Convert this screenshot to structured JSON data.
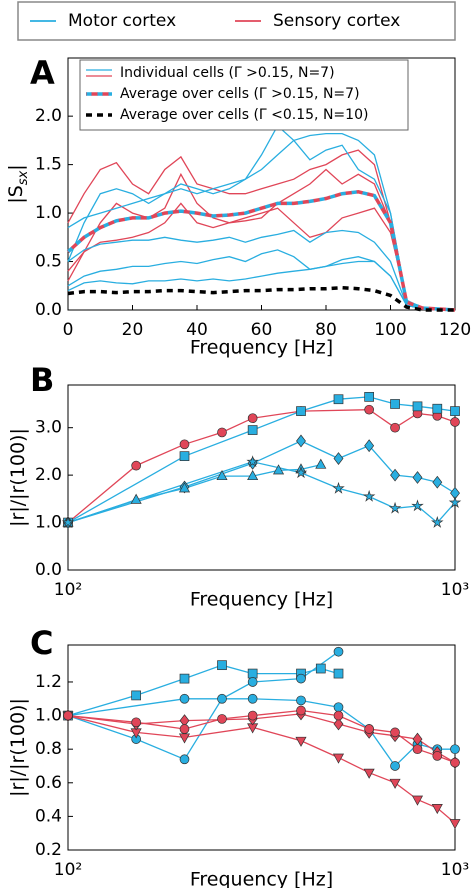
{
  "legend": [
    {
      "label": "Motor cortex",
      "color": "#29aee0"
    },
    {
      "label": "Sensory cortex",
      "color": "#e04658"
    }
  ],
  "chart_data": [
    {
      "type": "line",
      "panel_label": "A",
      "xlabel": "Frequency [Hz]",
      "ylabel": [
        "|S",
        "sx",
        "|"
      ],
      "xscale": "linear",
      "xlim": [
        0,
        120
      ],
      "ylim": [
        0,
        2.6
      ],
      "xticks": [
        0,
        20,
        40,
        60,
        80,
        100,
        120
      ],
      "yticks": [
        {
          "value": 0,
          "label": "0.0"
        },
        {
          "value": 0.5,
          "label": "0.5"
        },
        {
          "value": 1,
          "label": "1.0"
        },
        {
          "value": 1.5,
          "label": "1.5"
        },
        {
          "value": 2,
          "label": "2.0"
        }
      ],
      "legend": [
        {
          "label": "Individual cells (Γ >0.15, N=7)",
          "color": "#29aee0",
          "color2": "#e04658"
        },
        {
          "label": "Average over cells (Γ >0.15, N=7)",
          "color": "#29aee0",
          "color2": "#e04658",
          "dash": true
        },
        {
          "label": "Average over cells (Γ <0.15, N=10)",
          "color": "#000000",
          "dash": true
        }
      ],
      "x": [
        0,
        5,
        10,
        15,
        20,
        25,
        30,
        35,
        40,
        45,
        50,
        55,
        60,
        65,
        70,
        75,
        80,
        85,
        90,
        95,
        100,
        105,
        110,
        115,
        120
      ],
      "series": [
        {
          "color": "#e04658",
          "values": [
            0.9,
            1.2,
            1.45,
            1.52,
            1.3,
            1.2,
            1.45,
            1.58,
            1.3,
            1.25,
            1.2,
            1.2,
            1.25,
            1.3,
            1.35,
            1.45,
            1.5,
            1.6,
            1.65,
            1.5,
            0.9,
            0.1,
            0.02,
            0.01,
            0
          ]
        },
        {
          "color": "#e04658",
          "values": [
            0.3,
            0.6,
            0.9,
            1.1,
            1.0,
            0.95,
            1.05,
            1.4,
            1.1,
            0.95,
            0.9,
            0.92,
            0.95,
            1.1,
            1.2,
            1.3,
            1.45,
            1.3,
            1.4,
            1.3,
            0.9,
            0.1,
            0.02,
            0.01,
            0
          ]
        },
        {
          "color": "#e04658",
          "values": [
            0.4,
            0.6,
            0.7,
            0.72,
            0.75,
            0.8,
            0.9,
            1.1,
            0.9,
            0.85,
            0.9,
            0.95,
            1.0,
            1.05,
            0.9,
            0.75,
            0.8,
            0.95,
            1.0,
            1.05,
            0.8,
            0.1,
            0.02,
            0.01,
            0
          ]
        },
        {
          "color": "#29aee0",
          "values": [
            0.85,
            0.95,
            1.0,
            1.05,
            1.1,
            1.15,
            1.2,
            1.25,
            1.2,
            1.25,
            1.3,
            1.35,
            1.6,
            1.9,
            1.75,
            1.55,
            1.65,
            1.7,
            1.45,
            1.35,
            1.0,
            0.1,
            0.02,
            0.01,
            0
          ]
        },
        {
          "color": "#29aee0",
          "values": [
            0.5,
            0.9,
            1.2,
            1.25,
            1.2,
            1.1,
            1.2,
            1.3,
            1.25,
            1.2,
            1.25,
            1.35,
            1.45,
            1.6,
            1.75,
            1.8,
            1.82,
            1.82,
            1.75,
            1.6,
            1.0,
            0.1,
            0.02,
            0.01,
            0
          ]
        },
        {
          "color": "#29aee0",
          "values": [
            0.5,
            0.62,
            0.68,
            0.7,
            0.72,
            0.72,
            0.75,
            0.72,
            0.7,
            0.72,
            0.75,
            0.7,
            0.75,
            0.78,
            0.82,
            0.7,
            0.8,
            0.82,
            0.8,
            0.7,
            0.5,
            0.05,
            0.01,
            0,
            0
          ]
        },
        {
          "color": "#29aee0",
          "values": [
            0.25,
            0.35,
            0.4,
            0.42,
            0.45,
            0.45,
            0.48,
            0.5,
            0.48,
            0.52,
            0.55,
            0.5,
            0.58,
            0.62,
            0.55,
            0.42,
            0.45,
            0.52,
            0.55,
            0.5,
            0.35,
            0.05,
            0.01,
            0,
            0
          ]
        },
        {
          "color": "#29aee0",
          "values": [
            0.2,
            0.28,
            0.3,
            0.28,
            0.27,
            0.3,
            0.3,
            0.32,
            0.3,
            0.32,
            0.3,
            0.32,
            0.35,
            0.38,
            0.4,
            0.42,
            0.45,
            0.48,
            0.5,
            0.5,
            0.35,
            0.05,
            0.01,
            0,
            0
          ]
        },
        {
          "color": "#29aee0",
          "color2": "#e04658",
          "dash": true,
          "values": [
            0.6,
            0.75,
            0.85,
            0.92,
            0.95,
            0.95,
            1.0,
            1.02,
            1.0,
            0.97,
            0.98,
            1.0,
            1.05,
            1.1,
            1.1,
            1.12,
            1.15,
            1.2,
            1.22,
            1.18,
            0.9,
            0.08,
            0.02,
            0.01,
            0
          ]
        },
        {
          "color": "#000000",
          "dash": true,
          "values": [
            0.17,
            0.19,
            0.19,
            0.18,
            0.19,
            0.19,
            0.2,
            0.2,
            0.19,
            0.18,
            0.19,
            0.2,
            0.2,
            0.21,
            0.21,
            0.22,
            0.22,
            0.23,
            0.22,
            0.2,
            0.15,
            0.03,
            0,
            0,
            0
          ]
        }
      ]
    },
    {
      "type": "line",
      "panel_label": "B",
      "xlabel": "Frequency [Hz]",
      "ylabel": [
        "|r|/|r(100)|"
      ],
      "xscale": "log",
      "xlim": [
        100,
        1000
      ],
      "ylim": [
        0,
        3.9
      ],
      "xticks": [
        {
          "value": 100,
          "label": "10²"
        },
        {
          "value": 1000,
          "label": "10³"
        }
      ],
      "yticks": [
        {
          "value": 0,
          "label": "0.0"
        },
        {
          "value": 1,
          "label": "1.0"
        },
        {
          "value": 2,
          "label": "2.0"
        },
        {
          "value": 3,
          "label": "3.0"
        }
      ],
      "series": [
        {
          "color": "#e04658",
          "marker": "circle",
          "x": [
            100,
            150,
            200,
            250,
            300,
            400,
            600,
            700,
            800,
            900,
            1000
          ],
          "values": [
            1.0,
            2.2,
            2.65,
            2.9,
            3.2,
            3.35,
            3.38,
            3.0,
            3.3,
            3.25,
            3.12
          ]
        },
        {
          "color": "#29aee0",
          "marker": "square",
          "x": [
            100,
            200,
            300,
            400,
            500,
            600,
            700,
            800,
            900,
            1000
          ],
          "values": [
            1.0,
            2.4,
            2.95,
            3.35,
            3.6,
            3.65,
            3.5,
            3.45,
            3.4,
            3.35
          ]
        },
        {
          "color": "#29aee0",
          "marker": "diamond",
          "x": [
            100,
            200,
            300,
            400,
            500,
            600,
            700,
            800,
            900,
            1000
          ],
          "values": [
            1.0,
            1.75,
            2.25,
            2.72,
            2.35,
            2.62,
            2.0,
            1.95,
            1.85,
            1.62
          ]
        },
        {
          "color": "#29aee0",
          "marker": "triangle",
          "x": [
            100,
            150,
            200,
            250,
            300,
            350,
            400,
            450
          ],
          "values": [
            1.0,
            1.48,
            1.72,
            1.98,
            1.98,
            2.1,
            2.12,
            2.22
          ]
        },
        {
          "color": "#29aee0",
          "marker": "star",
          "x": [
            100,
            300,
            400,
            500,
            600,
            700,
            800,
            900,
            1000
          ],
          "values": [
            1.0,
            2.28,
            2.05,
            1.72,
            1.55,
            1.3,
            1.35,
            1.0,
            1.42
          ]
        }
      ]
    },
    {
      "type": "line",
      "panel_label": "C",
      "xlabel": "Frequency [Hz]",
      "ylabel": [
        "|r|/|r(100)|"
      ],
      "xscale": "log",
      "xlim": [
        100,
        1000
      ],
      "ylim": [
        0.2,
        1.42
      ],
      "xticks": [
        {
          "value": 100,
          "label": "10²"
        },
        {
          "value": 1000,
          "label": "10³"
        }
      ],
      "yticks": [
        0.2,
        0.4,
        0.6,
        0.8,
        {
          "value": 1,
          "label": "1.0"
        },
        1.2
      ],
      "series": [
        {
          "color": "#29aee0",
          "marker": "square",
          "x": [
            100,
            150,
            200,
            250,
            300,
            400,
            450,
            500
          ],
          "values": [
            1.0,
            1.12,
            1.22,
            1.3,
            1.25,
            1.25,
            1.28,
            1.25
          ]
        },
        {
          "color": "#29aee0",
          "marker": "circle",
          "x": [
            100,
            150,
            200,
            250,
            300,
            400,
            500
          ],
          "values": [
            1.0,
            0.86,
            0.74,
            1.1,
            1.2,
            1.22,
            1.38
          ]
        },
        {
          "color": "#29aee0",
          "marker": "circle",
          "x": [
            100,
            200,
            300,
            400,
            500,
            600,
            700,
            800,
            900,
            1000
          ],
          "values": [
            1.0,
            1.1,
            1.1,
            1.09,
            1.05,
            0.92,
            0.7,
            0.83,
            0.8,
            0.8
          ]
        },
        {
          "color": "#e04658",
          "marker": "tri_down",
          "x": [
            100,
            150,
            200,
            300,
            400,
            500,
            600,
            700,
            800,
            900,
            1000
          ],
          "values": [
            1.0,
            0.9,
            0.87,
            0.93,
            0.85,
            0.75,
            0.66,
            0.6,
            0.5,
            0.45,
            0.36
          ]
        },
        {
          "color": "#e04658",
          "marker": "diamond",
          "x": [
            100,
            150,
            200,
            300,
            400,
            500,
            600,
            700,
            800,
            900,
            1000
          ],
          "values": [
            1.0,
            0.95,
            0.97,
            0.98,
            1.01,
            0.95,
            0.9,
            0.88,
            0.86,
            0.78,
            0.72
          ]
        },
        {
          "color": "#e04658",
          "marker": "circle",
          "x": [
            100,
            150,
            200,
            250,
            300,
            400,
            500,
            600,
            700,
            800,
            900,
            1000
          ],
          "values": [
            1.0,
            0.96,
            0.92,
            0.98,
            1.0,
            1.03,
            1.0,
            0.92,
            0.9,
            0.8,
            0.76,
            0.72
          ]
        }
      ]
    }
  ]
}
